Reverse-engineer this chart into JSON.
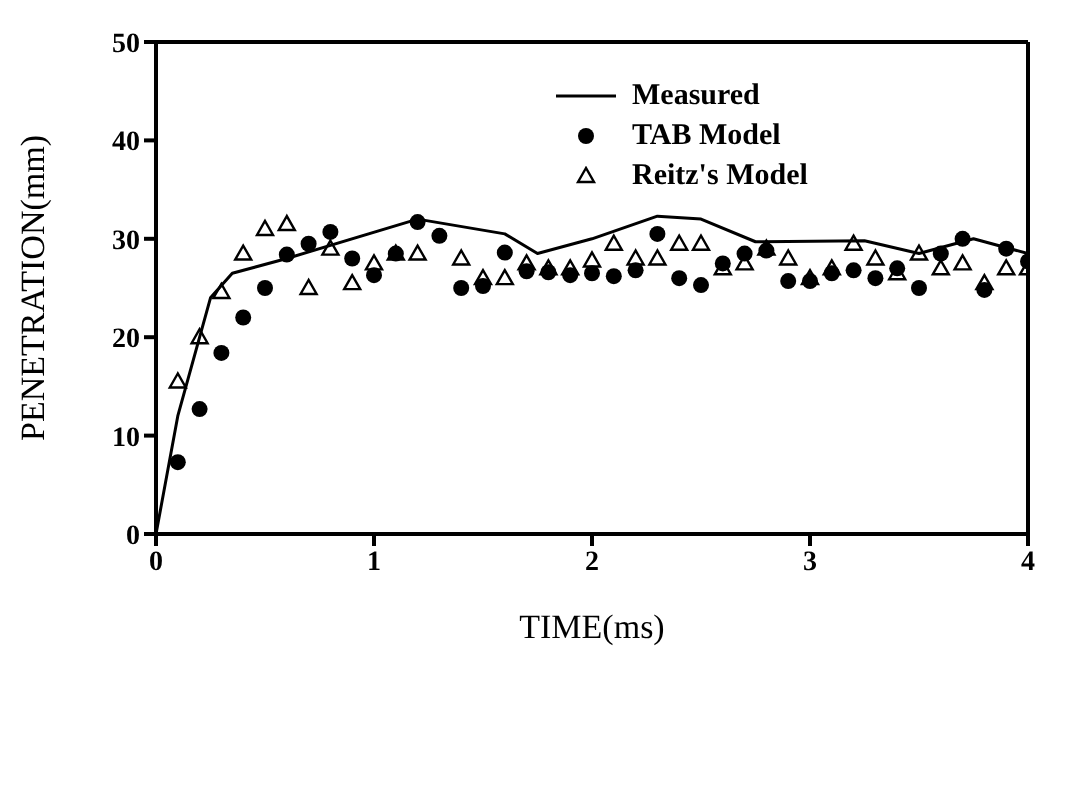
{
  "chart_data": {
    "type": "scatter",
    "xlabel": "TIME(ms)",
    "ylabel": "PENETRATION(mm)",
    "xlim": [
      0,
      4
    ],
    "xticks": [
      0,
      1,
      2,
      3,
      4
    ],
    "ylim": [
      0,
      50
    ],
    "yticks": [
      0,
      10,
      20,
      30,
      40,
      50
    ],
    "legend": "top right",
    "series": [
      {
        "name": "Measured",
        "type": "line",
        "marker": "none",
        "line_style": "solid",
        "color": "#000000",
        "x": [
          0,
          0.1,
          0.25,
          0.35,
          0.6,
          1.2,
          1.6,
          1.75,
          2.0,
          2.3,
          2.5,
          2.75,
          3.25,
          3.5,
          3.75,
          4.0
        ],
        "values": [
          0,
          12,
          24,
          26.5,
          28,
          32,
          30.5,
          28.5,
          30,
          32.3,
          32,
          29.7,
          29.8,
          28.5,
          30,
          28.5
        ]
      },
      {
        "name": "TAB Model",
        "marker": "circle",
        "color": "#000000",
        "x": [
          0.1,
          0.2,
          0.3,
          0.4,
          0.5,
          0.6,
          0.7,
          0.8,
          0.9,
          1.0,
          1.1,
          1.2,
          1.3,
          1.4,
          1.5,
          1.6,
          1.7,
          1.8,
          1.9,
          2.0,
          2.1,
          2.2,
          2.3,
          2.4,
          2.5,
          2.6,
          2.7,
          2.8,
          2.9,
          3.0,
          3.1,
          3.2,
          3.3,
          3.4,
          3.5,
          3.6,
          3.7,
          3.8,
          3.9,
          4.0
        ],
        "values": [
          7.3,
          12.7,
          18.4,
          22,
          25,
          28.4,
          29.5,
          30.7,
          28,
          26.3,
          28.5,
          31.7,
          30.3,
          25,
          25.2,
          28.6,
          26.7,
          26.6,
          26.3,
          26.5,
          26.2,
          26.8,
          30.5,
          26,
          25.3,
          27.5,
          28.5,
          28.8,
          25.7,
          25.7,
          26.5,
          26.8,
          26,
          27,
          25,
          28.5,
          30,
          24.8,
          29,
          27.7
        ]
      },
      {
        "name": "Reitz's Model",
        "marker": "triangle",
        "color": "#000000",
        "x": [
          0.1,
          0.2,
          0.3,
          0.4,
          0.5,
          0.6,
          0.7,
          0.8,
          0.9,
          1.0,
          1.1,
          1.2,
          1.4,
          1.5,
          1.6,
          1.7,
          1.8,
          1.9,
          2.0,
          2.1,
          2.2,
          2.3,
          2.4,
          2.5,
          2.6,
          2.7,
          2.8,
          2.9,
          3.0,
          3.1,
          3.2,
          3.3,
          3.4,
          3.5,
          3.6,
          3.7,
          3.8,
          3.9,
          4.0
        ],
        "values": [
          15.5,
          20,
          24.6,
          28.5,
          31,
          31.5,
          25,
          29,
          25.5,
          27.5,
          28.5,
          28.5,
          28,
          26,
          26,
          27.5,
          27,
          27,
          27.8,
          29.5,
          28,
          28,
          29.5,
          29.5,
          27,
          27.5,
          29,
          28,
          26,
          27,
          29.5,
          28,
          26.5,
          28.5,
          27,
          27.5,
          25.5,
          27,
          27
        ]
      }
    ]
  }
}
